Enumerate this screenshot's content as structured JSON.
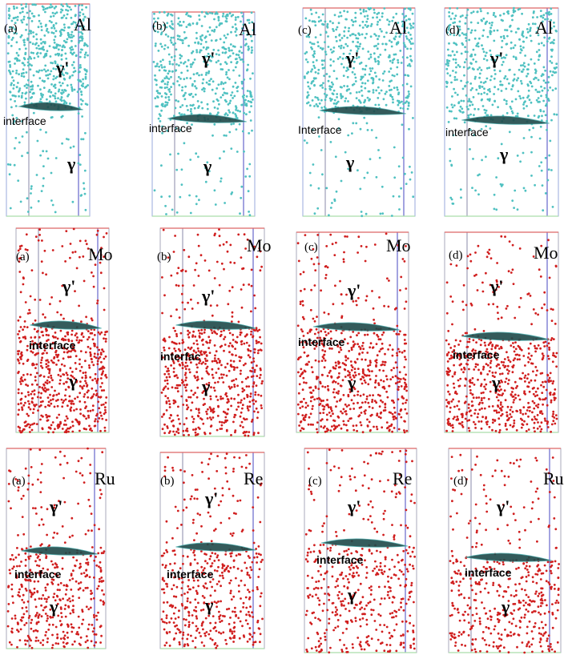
{
  "panels": [
    {
      "label": "(a)",
      "element": "Al",
      "gamma_prime": "γ'",
      "interface": "interface",
      "gamma": "γ"
    },
    {
      "label": "(b)",
      "element": "Al",
      "gamma_prime": "γ'",
      "interface": "interface",
      "gamma": "γ"
    },
    {
      "label": "(c)",
      "element": "Al",
      "gamma_prime": "γ'",
      "interface": "Interface",
      "gamma": "γ"
    },
    {
      "label": "(d)",
      "element": "Al",
      "gamma_prime": "γ'",
      "interface": "interface",
      "gamma": "γ"
    },
    {
      "label": "(a)",
      "element": "Mo",
      "gamma_prime": "γ'",
      "interface": "interface",
      "gamma": "γ"
    },
    {
      "label": "(b)",
      "element": "Mo",
      "gamma_prime": "γ'",
      "interface": "interfac",
      "gamma": "γ"
    },
    {
      "label": "(c)",
      "element": "Mo",
      "gamma_prime": "γ'",
      "interface": "interface",
      "gamma": "γ"
    },
    {
      "label": "(d)",
      "element": "Mo",
      "gamma_prime": "γ'",
      "interface": "interface",
      "gamma": "γ"
    },
    {
      "label": "(a)",
      "element": "Ru",
      "gamma_prime": "γ'",
      "interface": "interface",
      "gamma": "γ"
    },
    {
      "label": "(b)",
      "element": "Re",
      "gamma_prime": "γ'",
      "interface": "interface",
      "gamma": "γ"
    },
    {
      "label": "(c)",
      "element": "Re",
      "gamma_prime": "γ'",
      "interface": "interface",
      "gamma": "γ"
    },
    {
      "label": "(d)",
      "element": "Ru",
      "gamma_prime": "γ'",
      "interface": "interface",
      "gamma": "γ"
    }
  ]
}
